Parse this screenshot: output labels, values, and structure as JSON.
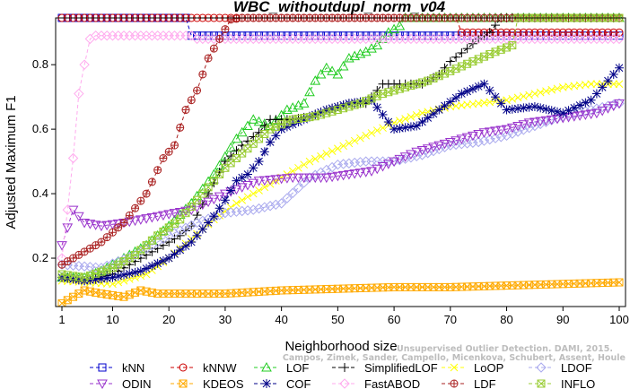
{
  "chart_data": {
    "type": "line",
    "title": "WBC_withoutdupl_norm_v04",
    "xlabel": "Neighborhood size",
    "ylabel": "Adjusted Maximum F1",
    "xlim": [
      1,
      100
    ],
    "ylim": [
      0.05,
      0.945
    ],
    "xticks": [
      1,
      10,
      20,
      30,
      40,
      50,
      60,
      70,
      80,
      90,
      100
    ],
    "yticks": [
      0.2,
      0.4,
      0.6,
      0.8
    ],
    "grid": false,
    "legend_position": "bottom",
    "series": [
      {
        "name": "kNN",
        "color": "#0000cc",
        "marker": "square",
        "points": [
          [
            1,
            0.945
          ],
          [
            23,
            0.945
          ],
          [
            24,
            0.89
          ],
          [
            100,
            0.89
          ]
        ]
      },
      {
        "name": "kNNW",
        "color": "#cc0000",
        "marker": "circle",
        "points": [
          [
            1,
            0.945
          ],
          [
            71,
            0.945
          ],
          [
            72,
            0.9
          ],
          [
            100,
            0.9
          ]
        ]
      },
      {
        "name": "LOF",
        "color": "#22cc22",
        "marker": "triangle",
        "points": [
          [
            1,
            0.14
          ],
          [
            5,
            0.14
          ],
          [
            8,
            0.16
          ],
          [
            12,
            0.2
          ],
          [
            16,
            0.24
          ],
          [
            20,
            0.3
          ],
          [
            24,
            0.37
          ],
          [
            28,
            0.46
          ],
          [
            32,
            0.57
          ],
          [
            35,
            0.63
          ],
          [
            38,
            0.61
          ],
          [
            41,
            0.66
          ],
          [
            44,
            0.68
          ],
          [
            46,
            0.75
          ],
          [
            48,
            0.79
          ],
          [
            50,
            0.77
          ],
          [
            52,
            0.82
          ],
          [
            55,
            0.84
          ],
          [
            57,
            0.86
          ],
          [
            59,
            0.9
          ],
          [
            61,
            0.92
          ],
          [
            62,
            0.945
          ],
          [
            100,
            0.945
          ]
        ]
      },
      {
        "name": "SimplifiedLOF",
        "color": "#000000",
        "marker": "plus",
        "points": [
          [
            1,
            0.14
          ],
          [
            5,
            0.13
          ],
          [
            10,
            0.15
          ],
          [
            14,
            0.19
          ],
          [
            18,
            0.23
          ],
          [
            22,
            0.27
          ],
          [
            24,
            0.3
          ],
          [
            27,
            0.4
          ],
          [
            30,
            0.5
          ],
          [
            33,
            0.55
          ],
          [
            36,
            0.59
          ],
          [
            38,
            0.63
          ],
          [
            42,
            0.63
          ],
          [
            45,
            0.64
          ],
          [
            48,
            0.66
          ],
          [
            52,
            0.68
          ],
          [
            55,
            0.68
          ],
          [
            58,
            0.74
          ],
          [
            62,
            0.74
          ],
          [
            65,
            0.74
          ],
          [
            68,
            0.77
          ],
          [
            70,
            0.81
          ],
          [
            73,
            0.85
          ],
          [
            75,
            0.88
          ],
          [
            77,
            0.9
          ],
          [
            79,
            0.945
          ],
          [
            100,
            0.945
          ]
        ]
      },
      {
        "name": "LoOP",
        "color": "#ffff00",
        "marker": "x",
        "points": [
          [
            1,
            0.13
          ],
          [
            10,
            0.12
          ],
          [
            16,
            0.15
          ],
          [
            20,
            0.2
          ],
          [
            24,
            0.26
          ],
          [
            28,
            0.32
          ],
          [
            32,
            0.37
          ],
          [
            36,
            0.41
          ],
          [
            40,
            0.45
          ],
          [
            45,
            0.5
          ],
          [
            50,
            0.54
          ],
          [
            55,
            0.58
          ],
          [
            60,
            0.62
          ],
          [
            65,
            0.65
          ],
          [
            70,
            0.67
          ],
          [
            75,
            0.68
          ],
          [
            80,
            0.69
          ],
          [
            85,
            0.71
          ],
          [
            90,
            0.73
          ],
          [
            95,
            0.74
          ],
          [
            100,
            0.74
          ]
        ]
      },
      {
        "name": "LDOF",
        "color": "#aaaaee",
        "marker": "diamond",
        "points": [
          [
            1,
            0.18
          ],
          [
            8,
            0.17
          ],
          [
            14,
            0.21
          ],
          [
            20,
            0.27
          ],
          [
            25,
            0.31
          ],
          [
            30,
            0.34
          ],
          [
            35,
            0.35
          ],
          [
            40,
            0.37
          ],
          [
            45,
            0.45
          ],
          [
            50,
            0.49
          ],
          [
            55,
            0.5
          ],
          [
            60,
            0.5
          ],
          [
            65,
            0.52
          ],
          [
            70,
            0.55
          ],
          [
            75,
            0.56
          ],
          [
            80,
            0.58
          ],
          [
            85,
            0.61
          ],
          [
            90,
            0.64
          ],
          [
            95,
            0.66
          ],
          [
            100,
            0.68
          ]
        ]
      },
      {
        "name": "ODIN",
        "color": "#9933cc",
        "marker": "triangle-down",
        "points": [
          [
            1,
            0.24
          ],
          [
            3,
            0.35
          ],
          [
            5,
            0.31
          ],
          [
            8,
            0.3
          ],
          [
            12,
            0.31
          ],
          [
            18,
            0.33
          ],
          [
            24,
            0.35
          ],
          [
            30,
            0.4
          ],
          [
            36,
            0.44
          ],
          [
            42,
            0.45
          ],
          [
            48,
            0.45
          ],
          [
            52,
            0.46
          ],
          [
            56,
            0.47
          ],
          [
            60,
            0.5
          ],
          [
            64,
            0.53
          ],
          [
            68,
            0.55
          ],
          [
            72,
            0.57
          ],
          [
            76,
            0.59
          ],
          [
            80,
            0.6
          ],
          [
            84,
            0.62
          ],
          [
            88,
            0.63
          ],
          [
            92,
            0.64
          ],
          [
            96,
            0.65
          ],
          [
            100,
            0.68
          ]
        ]
      },
      {
        "name": "KDEOS",
        "color": "#ffaa00",
        "marker": "square-x",
        "points": [
          [
            1,
            0.06
          ],
          [
            5,
            0.1
          ],
          [
            8,
            0.09
          ],
          [
            12,
            0.08
          ],
          [
            15,
            0.1
          ],
          [
            18,
            0.09
          ],
          [
            25,
            0.09
          ],
          [
            30,
            0.09
          ],
          [
            40,
            0.1
          ],
          [
            50,
            0.105
          ],
          [
            60,
            0.11
          ],
          [
            70,
            0.11
          ],
          [
            80,
            0.115
          ],
          [
            90,
            0.12
          ],
          [
            100,
            0.125
          ]
        ]
      },
      {
        "name": "COF",
        "color": "#000088",
        "marker": "star",
        "points": [
          [
            1,
            0.14
          ],
          [
            5,
            0.13
          ],
          [
            10,
            0.14
          ],
          [
            15,
            0.16
          ],
          [
            20,
            0.2
          ],
          [
            24,
            0.25
          ],
          [
            28,
            0.33
          ],
          [
            30,
            0.38
          ],
          [
            32,
            0.44
          ],
          [
            34,
            0.46
          ],
          [
            36,
            0.5
          ],
          [
            38,
            0.56
          ],
          [
            40,
            0.6
          ],
          [
            44,
            0.63
          ],
          [
            48,
            0.66
          ],
          [
            52,
            0.68
          ],
          [
            56,
            0.69
          ],
          [
            60,
            0.6
          ],
          [
            64,
            0.61
          ],
          [
            68,
            0.66
          ],
          [
            72,
            0.71
          ],
          [
            76,
            0.74
          ],
          [
            80,
            0.66
          ],
          [
            85,
            0.67
          ],
          [
            90,
            0.65
          ],
          [
            95,
            0.69
          ],
          [
            100,
            0.79
          ]
        ]
      },
      {
        "name": "FastABOD",
        "color": "#ffaaee",
        "marker": "diamond",
        "points": [
          [
            1,
            0.2
          ],
          [
            2,
            0.35
          ],
          [
            3,
            0.51
          ],
          [
            4,
            0.71
          ],
          [
            5,
            0.8
          ],
          [
            6,
            0.88
          ],
          [
            7,
            0.89
          ],
          [
            24,
            0.89
          ],
          [
            25,
            0.88
          ],
          [
            100,
            0.88
          ]
        ]
      },
      {
        "name": "LDF",
        "color": "#aa2222",
        "marker": "circle-plus",
        "points": [
          [
            1,
            0.18
          ],
          [
            4,
            0.21
          ],
          [
            8,
            0.25
          ],
          [
            12,
            0.31
          ],
          [
            16,
            0.4
          ],
          [
            19,
            0.51
          ],
          [
            21,
            0.55
          ],
          [
            23,
            0.66
          ],
          [
            25,
            0.72
          ],
          [
            27,
            0.82
          ],
          [
            29,
            0.88
          ],
          [
            31,
            0.94
          ],
          [
            33,
            0.945
          ],
          [
            100,
            0.945
          ]
        ]
      },
      {
        "name": "INFLO",
        "color": "#99cc33",
        "marker": "square-x",
        "points": [
          [
            1,
            0.15
          ],
          [
            5,
            0.14
          ],
          [
            10,
            0.17
          ],
          [
            14,
            0.21
          ],
          [
            18,
            0.27
          ],
          [
            22,
            0.32
          ],
          [
            26,
            0.4
          ],
          [
            30,
            0.48
          ],
          [
            34,
            0.54
          ],
          [
            38,
            0.6
          ],
          [
            42,
            0.63
          ],
          [
            46,
            0.64
          ],
          [
            50,
            0.66
          ],
          [
            54,
            0.68
          ],
          [
            58,
            0.71
          ],
          [
            62,
            0.73
          ],
          [
            66,
            0.75
          ],
          [
            70,
            0.78
          ],
          [
            74,
            0.81
          ],
          [
            78,
            0.84
          ],
          [
            81,
            0.86
          ],
          [
            82,
            0.945
          ],
          [
            100,
            0.945
          ]
        ]
      }
    ]
  },
  "watermark": {
    "line1": "Unsupervised Outlier Detection. DAMI, 2015.",
    "line2": "Campos, Zimek, Sander, Campello, Micenkova, Schubert, Assent, Houle"
  }
}
